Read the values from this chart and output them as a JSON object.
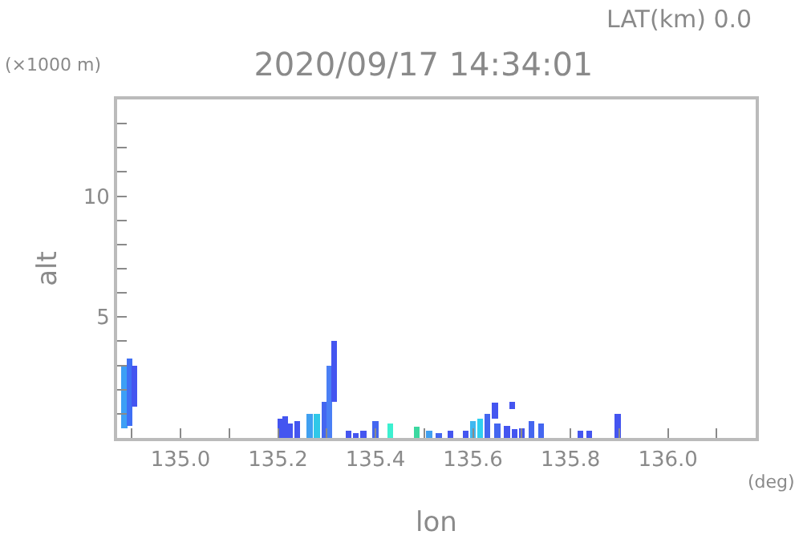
{
  "chart_data": {
    "type": "bar",
    "title": "2020/09/17 14:34:01",
    "subtitle": "LAT(km) 0.0",
    "xlabel": "lon",
    "ylabel": "alt",
    "annotations": [
      "(×1000 m)",
      "(deg)"
    ],
    "x": [
      134.885,
      134.895,
      134.905,
      135.205,
      135.215,
      135.225,
      135.24,
      135.265,
      135.28,
      135.295,
      135.305,
      135.315,
      135.345,
      135.36,
      135.375,
      135.4,
      135.43,
      135.485,
      135.51,
      135.53,
      135.554,
      135.585,
      135.6,
      135.615,
      135.63,
      135.645,
      135.65,
      135.67,
      135.68,
      135.685,
      135.7,
      135.72,
      135.74,
      135.82,
      135.838,
      135.897
    ],
    "base": [
      0.4,
      0.5,
      1.3,
      0,
      0,
      0,
      0,
      0,
      0,
      0,
      0,
      1.5,
      0,
      0,
      0,
      0,
      0,
      0,
      0,
      0,
      0,
      0,
      0,
      0,
      0,
      0.8,
      0,
      0,
      1.2,
      0,
      0,
      0,
      0,
      0,
      0,
      0
    ],
    "values": [
      2.6,
      2.8,
      1.7,
      0.8,
      0.9,
      0.6,
      0.7,
      1.0,
      1.0,
      1.5,
      3.0,
      2.5,
      0.3,
      0.2,
      0.3,
      0.7,
      0.6,
      0.45,
      0.3,
      0.2,
      0.3,
      0.3,
      0.7,
      0.8,
      1.0,
      0.65,
      0.6,
      0.5,
      0.3,
      0.35,
      0.4,
      0.7,
      0.6,
      0.3,
      0.3,
      1.0
    ],
    "colors": [
      "#3d9ff5",
      "#3f6ff5",
      "#4455f0",
      "#4455f0",
      "#4455f0",
      "#4455f0",
      "#4455f0",
      "#40a0f0",
      "#30c8e8",
      "#4466f0",
      "#4a7ff5",
      "#4455f0",
      "#4455f0",
      "#4455f0",
      "#4455f0",
      "#4466f0",
      "#3cf0d0",
      "#3cd8a0",
      "#40a0f0",
      "#4466f0",
      "#4455f0",
      "#4455f0",
      "#40b8f0",
      "#30d0f0",
      "#4466f0",
      "#4455f0",
      "#4466f0",
      "#4455f0",
      "#4455f0",
      "#4455f0",
      "#4455f0",
      "#4466f0",
      "#4466f0",
      "#4455f0",
      "#4455f0",
      "#4455f0"
    ],
    "xlim": [
      134.87,
      136.18
    ],
    "xticks": [
      {
        "value": 134.9,
        "label": null
      },
      {
        "value": 135,
        "label": "135.0"
      },
      {
        "value": 135.1,
        "label": null
      },
      {
        "value": 135.2,
        "label": "135.2"
      },
      {
        "value": 135.3,
        "label": null
      },
      {
        "value": 135.4,
        "label": "135.4"
      },
      {
        "value": 135.5,
        "label": null
      },
      {
        "value": 135.6,
        "label": "135.6"
      },
      {
        "value": 135.7,
        "label": null
      },
      {
        "value": 135.8,
        "label": "135.8"
      },
      {
        "value": 135.9,
        "label": null
      },
      {
        "value": 136,
        "label": "136.0"
      },
      {
        "value": 136.1,
        "label": null
      }
    ],
    "ylim": [
      0,
      14
    ],
    "yticks": [
      {
        "value": 1,
        "label": null
      },
      {
        "value": 2,
        "label": null
      },
      {
        "value": 3,
        "label": null
      },
      {
        "value": 4,
        "label": null
      },
      5,
      {
        "value": 6,
        "label": null
      },
      {
        "value": 7,
        "label": null
      },
      {
        "value": 8,
        "label": null
      },
      {
        "value": 9,
        "label": null
      },
      10,
      {
        "value": 11,
        "label": null
      },
      {
        "value": 12,
        "label": null
      },
      {
        "value": 13,
        "label": null
      }
    ],
    "grid": false,
    "legend": false
  }
}
